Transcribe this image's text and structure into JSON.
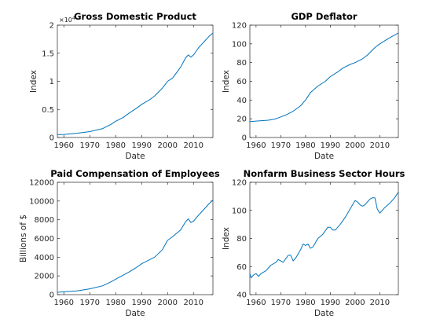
{
  "chart_data": [
    {
      "type": "line",
      "title": "Gross Domestic Product",
      "xlabel": "Date",
      "ylabel": "Index",
      "exponent_label": "×10",
      "exponent_power": "4",
      "xlim": [
        1957.5,
        2017.5
      ],
      "ylim": [
        0,
        2
      ],
      "xticks": [
        1960,
        1970,
        1980,
        1990,
        2000,
        2010
      ],
      "yticks": [
        0,
        0.5,
        1,
        1.5,
        2
      ],
      "ytick_labels": [
        "0",
        "0.5",
        "1",
        "1.5",
        "2"
      ],
      "series": [
        {
          "x": [
            1957.5,
            1960,
            1965,
            1970,
            1975,
            1978,
            1980,
            1983,
            1985,
            1988,
            1990,
            1993,
            1995,
            1998,
            2000,
            2002,
            2005,
            2007,
            2008,
            2009,
            2010,
            2012,
            2014,
            2016,
            2017.5
          ],
          "values": [
            0.05,
            0.055,
            0.075,
            0.105,
            0.16,
            0.23,
            0.29,
            0.36,
            0.43,
            0.52,
            0.59,
            0.67,
            0.74,
            0.88,
            1.0,
            1.06,
            1.25,
            1.42,
            1.47,
            1.43,
            1.47,
            1.6,
            1.7,
            1.8,
            1.86
          ]
        }
      ]
    },
    {
      "type": "line",
      "title": "GDP Deflator",
      "xlabel": "Date",
      "ylabel": "Index",
      "xlim": [
        1957.5,
        2017.5
      ],
      "ylim": [
        0,
        120
      ],
      "xticks": [
        1960,
        1970,
        1980,
        1990,
        2000,
        2010
      ],
      "yticks": [
        0,
        20,
        40,
        60,
        80,
        100,
        120
      ],
      "ytick_labels": [
        "0",
        "20",
        "40",
        "60",
        "80",
        "100",
        "120"
      ],
      "series": [
        {
          "x": [
            1957.5,
            1960,
            1965,
            1968,
            1970,
            1972,
            1975,
            1978,
            1980,
            1982,
            1985,
            1988,
            1990,
            1993,
            1995,
            1998,
            2000,
            2003,
            2005,
            2008,
            2010,
            2013,
            2015,
            2017.5
          ],
          "values": [
            17,
            17.5,
            18.5,
            20,
            22,
            24,
            28,
            34,
            40,
            48,
            55,
            60,
            65,
            70,
            74,
            78,
            80,
            84,
            88,
            96,
            100,
            105,
            108,
            111.5
          ]
        }
      ]
    },
    {
      "type": "line",
      "title": "Paid Compensation of Employees",
      "xlabel": "Date",
      "ylabel": "Billions of $",
      "xlim": [
        1957.5,
        2017.5
      ],
      "ylim": [
        0,
        12000
      ],
      "xticks": [
        1960,
        1970,
        1980,
        1990,
        2000,
        2010
      ],
      "yticks": [
        0,
        2000,
        4000,
        6000,
        8000,
        10000,
        12000
      ],
      "ytick_labels": [
        "0",
        "2000",
        "4000",
        "6000",
        "8000",
        "10000",
        "12000"
      ],
      "series": [
        {
          "x": [
            1957.5,
            1960,
            1965,
            1970,
            1975,
            1978,
            1980,
            1985,
            1988,
            1990,
            1995,
            1998,
            2000,
            2002,
            2005,
            2007,
            2008,
            2009,
            2010,
            2012,
            2014,
            2016,
            2017.5
          ],
          "values": [
            250,
            300,
            400,
            620,
            950,
            1350,
            1650,
            2400,
            2900,
            3300,
            4000,
            4800,
            5800,
            6200,
            6900,
            7800,
            8100,
            7700,
            7850,
            8500,
            9100,
            9700,
            10100
          ]
        }
      ]
    },
    {
      "type": "line",
      "title": "Nonfarm Business Sector Hours",
      "xlabel": "Date",
      "ylabel": "Index",
      "xlim": [
        1957.5,
        2017.5
      ],
      "ylim": [
        40,
        120
      ],
      "xticks": [
        1960,
        1970,
        1980,
        1990,
        2000,
        2010
      ],
      "yticks": [
        40,
        60,
        80,
        100,
        120
      ],
      "ytick_labels": [
        "40",
        "60",
        "80",
        "100",
        "120"
      ],
      "series": [
        {
          "x": [
            1957.5,
            1958,
            1959,
            1960,
            1961,
            1962,
            1964,
            1966,
            1968,
            1969,
            1970,
            1971,
            1973,
            1974,
            1975,
            1976,
            1978,
            1979,
            1980,
            1981,
            1982,
            1983,
            1985,
            1987,
            1989,
            1990,
            1991,
            1992,
            1994,
            1996,
            1998,
            2000,
            2001,
            2002,
            2003,
            2004,
            2006,
            2007,
            2008,
            2009,
            2010,
            2011,
            2012,
            2014,
            2016,
            2017.5
          ],
          "values": [
            55,
            52,
            54,
            55,
            53,
            55,
            57,
            61,
            63,
            65,
            64,
            63,
            68,
            68,
            64,
            66,
            72,
            76,
            75,
            76,
            73,
            74,
            80,
            83,
            88,
            88,
            86,
            86,
            90,
            95,
            101,
            107,
            106,
            104,
            103,
            104,
            108,
            109,
            109,
            101,
            98,
            100,
            102,
            105,
            109,
            113
          ]
        }
      ]
    }
  ]
}
